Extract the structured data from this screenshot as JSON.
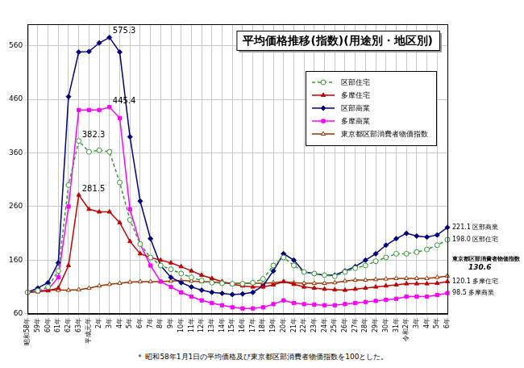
{
  "chart_data": {
    "type": "line",
    "title": "平均価格推移(指数)(用途別・地区別)",
    "note": "＊ 昭和58年1月1日の平均価格及び東京都区部消費者物価指数を100とした。",
    "categories": [
      "昭和58年",
      "59年",
      "60年",
      "61年",
      "62年",
      "63年",
      "平成元年",
      "2年",
      "3年",
      "4年",
      "5年",
      "6年",
      "7年",
      "8年",
      "9年",
      "10年",
      "11年",
      "12年",
      "13年",
      "14年",
      "15年",
      "16年",
      "17年",
      "18年",
      "19年",
      "20年",
      "21年",
      "22年",
      "23年",
      "24年",
      "25年",
      "26年",
      "27年",
      "28年",
      "29年",
      "30年",
      "31年",
      "令和2年",
      "3年",
      "4年",
      "5年",
      "6年"
    ],
    "series": [
      {
        "name": "区部住宅",
        "color": "#339933",
        "marker": "circle_open",
        "line_style": "dashed",
        "values": [
          100,
          103,
          110,
          140,
          300,
          382.3,
          362,
          365,
          362,
          305,
          235,
          190,
          165,
          150,
          143,
          135,
          128,
          122,
          118,
          117,
          116,
          116,
          118,
          125,
          150,
          165,
          150,
          138,
          135,
          132,
          130,
          138,
          145,
          150,
          158,
          165,
          172,
          172,
          175,
          180,
          188,
          198.0
        ]
      },
      {
        "name": "多摩住宅",
        "color": "#c00000",
        "marker": "triangle",
        "line_style": "solid",
        "values": [
          100,
          101,
          103,
          108,
          150,
          281.5,
          255,
          250,
          250,
          230,
          195,
          172,
          165,
          160,
          155,
          148,
          140,
          132,
          126,
          120,
          115,
          112,
          110,
          110,
          114,
          120,
          115,
          110,
          108,
          106,
          105,
          104,
          106,
          108,
          110,
          112,
          114,
          116,
          116,
          116,
          117,
          120.1
        ]
      },
      {
        "name": "区部商業",
        "color": "#000080",
        "marker": "diamond",
        "line_style": "solid",
        "values": [
          100,
          108,
          118,
          155,
          465,
          548,
          549,
          565,
          575.3,
          548,
          390,
          270,
          200,
          150,
          128,
          118,
          110,
          104,
          100,
          98,
          96,
          97,
          100,
          112,
          140,
          172,
          160,
          138,
          135,
          132,
          132,
          140,
          148,
          160,
          172,
          188,
          200,
          210,
          205,
          203,
          207,
          221.1
        ]
      },
      {
        "name": "多摩商業",
        "color": "#ff00ff",
        "marker": "square",
        "line_style": "solid",
        "values": [
          100,
          102,
          105,
          128,
          260,
          440,
          440,
          440,
          445.4,
          425,
          255,
          190,
          150,
          120,
          110,
          100,
          92,
          85,
          80,
          76,
          72,
          70,
          70,
          72,
          78,
          85,
          80,
          78,
          77,
          76,
          76,
          78,
          80,
          82,
          84,
          86,
          88,
          92,
          92,
          92,
          95,
          98.5
        ]
      },
      {
        "name": "東京都区部消費者物価指数",
        "color": "#993300",
        "marker": "triangle_open",
        "line_style": "solid",
        "values": [
          100,
          102,
          104,
          104,
          104,
          105,
          108,
          112,
          115,
          117,
          119,
          120,
          120,
          120,
          121,
          122,
          121,
          120,
          119,
          118,
          117,
          117,
          117,
          117,
          118,
          120,
          118,
          117,
          117,
          117,
          118,
          121,
          123,
          123,
          124,
          125,
          126,
          126,
          126,
          126,
          128,
          130.6
        ]
      }
    ],
    "ylim": [
      60,
      600
    ],
    "yticks": [
      60,
      160,
      260,
      360,
      460,
      560
    ],
    "grid": true,
    "legend": "upper right",
    "annotations": [
      {
        "text": "575.3",
        "series": "区部商業",
        "point": 8
      },
      {
        "text": "445.4",
        "series": "多摩商業",
        "point": 8
      },
      {
        "text": "382.3",
        "series": "区部住宅",
        "point": 5
      },
      {
        "text": "281.5",
        "series": "多摩住宅",
        "point": 5
      }
    ],
    "end_labels": [
      {
        "series": "区部商業",
        "lines": [
          "221.1 区部商業"
        ]
      },
      {
        "series": "区部住宅",
        "lines": [
          "198.0 区部住宅"
        ]
      },
      {
        "series": "東京都区部消費者物価指数",
        "lines": [
          "東京都区部消費者物価指数",
          "130.6"
        ]
      },
      {
        "series": "多摩住宅",
        "lines": [
          "120.1 多摩住宅"
        ]
      },
      {
        "series": "多摩商業",
        "lines": [
          "98.5 多摩商業"
        ]
      }
    ]
  }
}
